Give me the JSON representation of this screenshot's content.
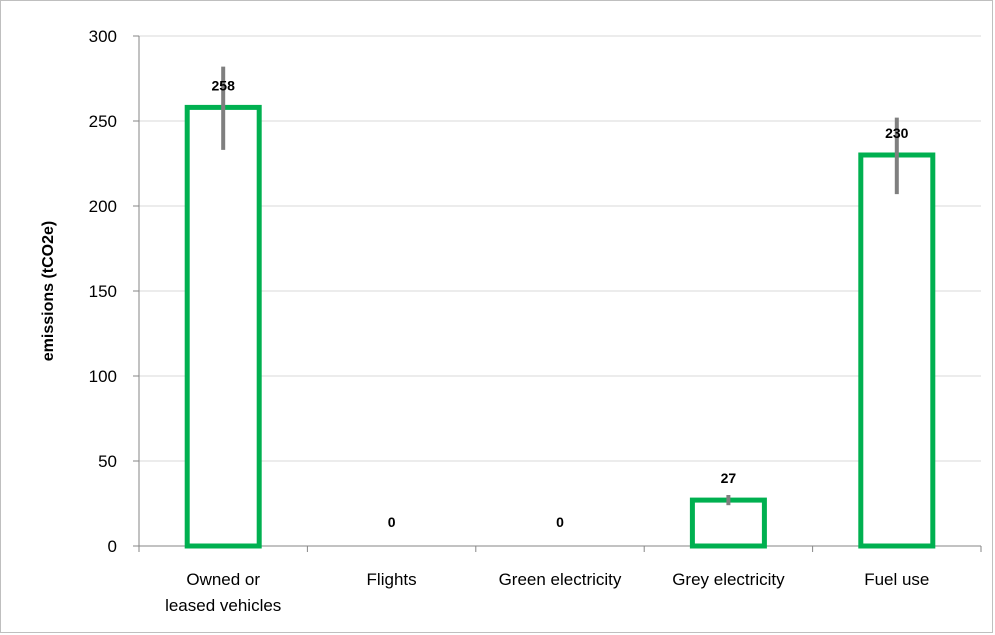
{
  "chart_data": {
    "type": "bar",
    "title": "",
    "xlabel": "",
    "ylabel": "emissions (tCO2e)",
    "ylim": [
      0,
      300
    ],
    "yticks": [
      0,
      50,
      100,
      150,
      200,
      250,
      300
    ],
    "categories": [
      [
        "Owned or",
        "leased vehicles"
      ],
      [
        "Flights"
      ],
      [
        "Green electricity"
      ],
      [
        "Grey electricity"
      ],
      [
        "Fuel use"
      ]
    ],
    "values": [
      258,
      0,
      0,
      27,
      230
    ],
    "error_bars": [
      {
        "low": 233,
        "high": 282
      },
      null,
      null,
      {
        "low": 24,
        "high": 30
      },
      {
        "low": 207,
        "high": 252
      }
    ],
    "data_labels": [
      "258",
      "0",
      "0",
      "27",
      "230"
    ],
    "grid": true,
    "legend": "none",
    "colors": {
      "bar_outline": "#00b050",
      "bar_fill": "#ffffff",
      "error_bar": "#7f7f7f",
      "gridline": "#d9d9d9",
      "axis": "#868686"
    }
  }
}
